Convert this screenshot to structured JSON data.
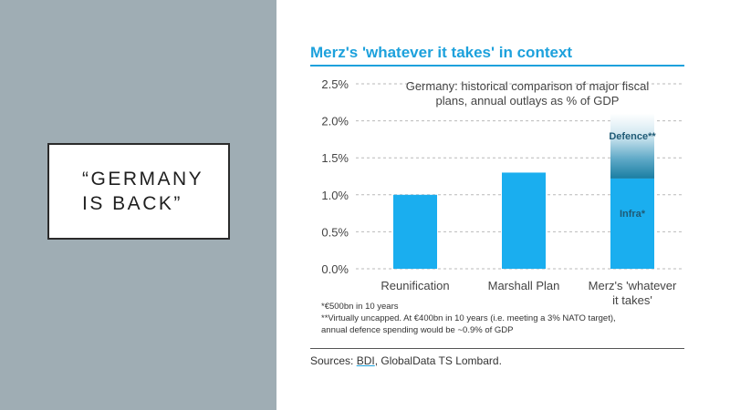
{
  "quote": {
    "line1": "“GERMANY",
    "line2": "IS BACK”"
  },
  "colors": {
    "accent": "#1da1dc",
    "bar": "#1aaeef",
    "panel": "#9fadb4",
    "defence_dark": "#1a7ea3"
  },
  "chart_data": {
    "type": "bar",
    "title": "Merz's 'whatever it takes' in context",
    "subtitle_lines": [
      "Germany: historical comparison of major fiscal",
      "plans, annual outlays as % of GDP"
    ],
    "categories": [
      "Reunification",
      "Marshall Plan",
      "Merz's 'whatever it takes'"
    ],
    "category_label_lines": [
      [
        "Reunification"
      ],
      [
        "Marshall Plan"
      ],
      [
        "Merz's 'whatever",
        "it takes'"
      ]
    ],
    "values": [
      1.0,
      1.3,
      1.22
    ],
    "stacked_top": {
      "category_index": 2,
      "label": "Defence**",
      "base": 1.22,
      "top": 2.1
    },
    "segment_labels": {
      "infra": "Infra*"
    },
    "y_ticks": [
      "0.0%",
      "0.5%",
      "1.0%",
      "1.5%",
      "2.0%",
      "2.5%"
    ],
    "ylim": [
      0,
      2.5
    ],
    "grid": true,
    "footnotes": [
      "*€500bn in 10 years",
      "**Virtually uncapped. At €400bn in 10 years (i.e. meeting a 3% NATO target),",
      "annual defence spending would be ~0.9% of GDP"
    ],
    "sources": {
      "prefix": "Sources: ",
      "bdi": "BDI",
      "rest": ", GlobalData TS Lombard."
    }
  }
}
